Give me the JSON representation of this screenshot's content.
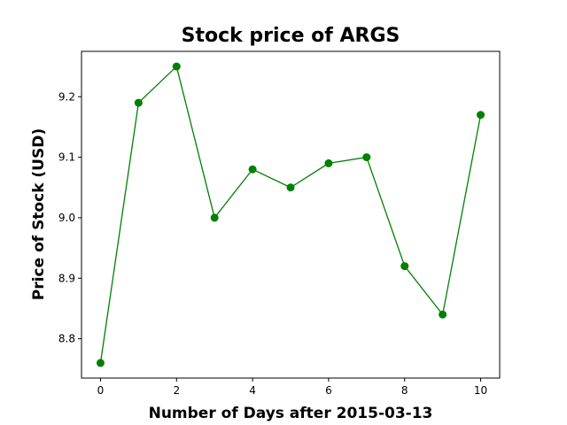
{
  "chart_data": {
    "type": "line",
    "title": "Stock price of ARGS",
    "xlabel": "Number of Days after 2015-03-13",
    "ylabel": "Price of Stock (USD)",
    "x": [
      0,
      1,
      2,
      3,
      4,
      5,
      6,
      7,
      8,
      9,
      10
    ],
    "series": [
      {
        "values": [
          8.76,
          9.19,
          9.25,
          9.0,
          9.08,
          9.05,
          9.09,
          9.1,
          8.92,
          8.84,
          9.17
        ]
      }
    ],
    "xlim": [
      -0.5,
      10.5
    ],
    "ylim": [
      8.735,
      9.275
    ],
    "xticks": [
      0,
      2,
      4,
      6,
      8,
      10
    ],
    "yticks": [
      8.8,
      8.9,
      9.0,
      9.1,
      9.2
    ],
    "ytick_labels": [
      "8.8",
      "8.9",
      "9.0",
      "9.1",
      "9.2"
    ],
    "line_color": "#008000",
    "marker": "circle",
    "grid": false,
    "legend": "none"
  }
}
